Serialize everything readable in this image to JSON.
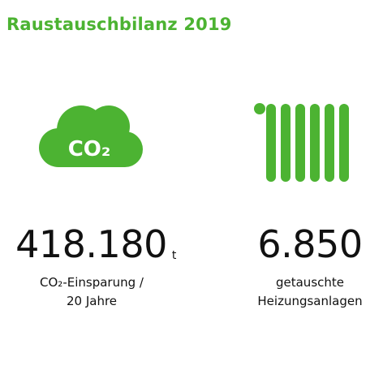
{
  "title": "Raustauschbilanz 2019",
  "accent_color": "#4cb332",
  "icons": {
    "left": "co2-cloud-icon",
    "left_text": "CO₂",
    "right": "radiator-icon"
  },
  "stats": [
    {
      "number": "418.180",
      "unit": "t",
      "label_lines": [
        "CO₂-Einsparung /",
        "20 Jahre"
      ]
    },
    {
      "number": "6.850",
      "unit": "",
      "label_lines": [
        "getauschte",
        "Heizungsanlagen"
      ]
    }
  ]
}
